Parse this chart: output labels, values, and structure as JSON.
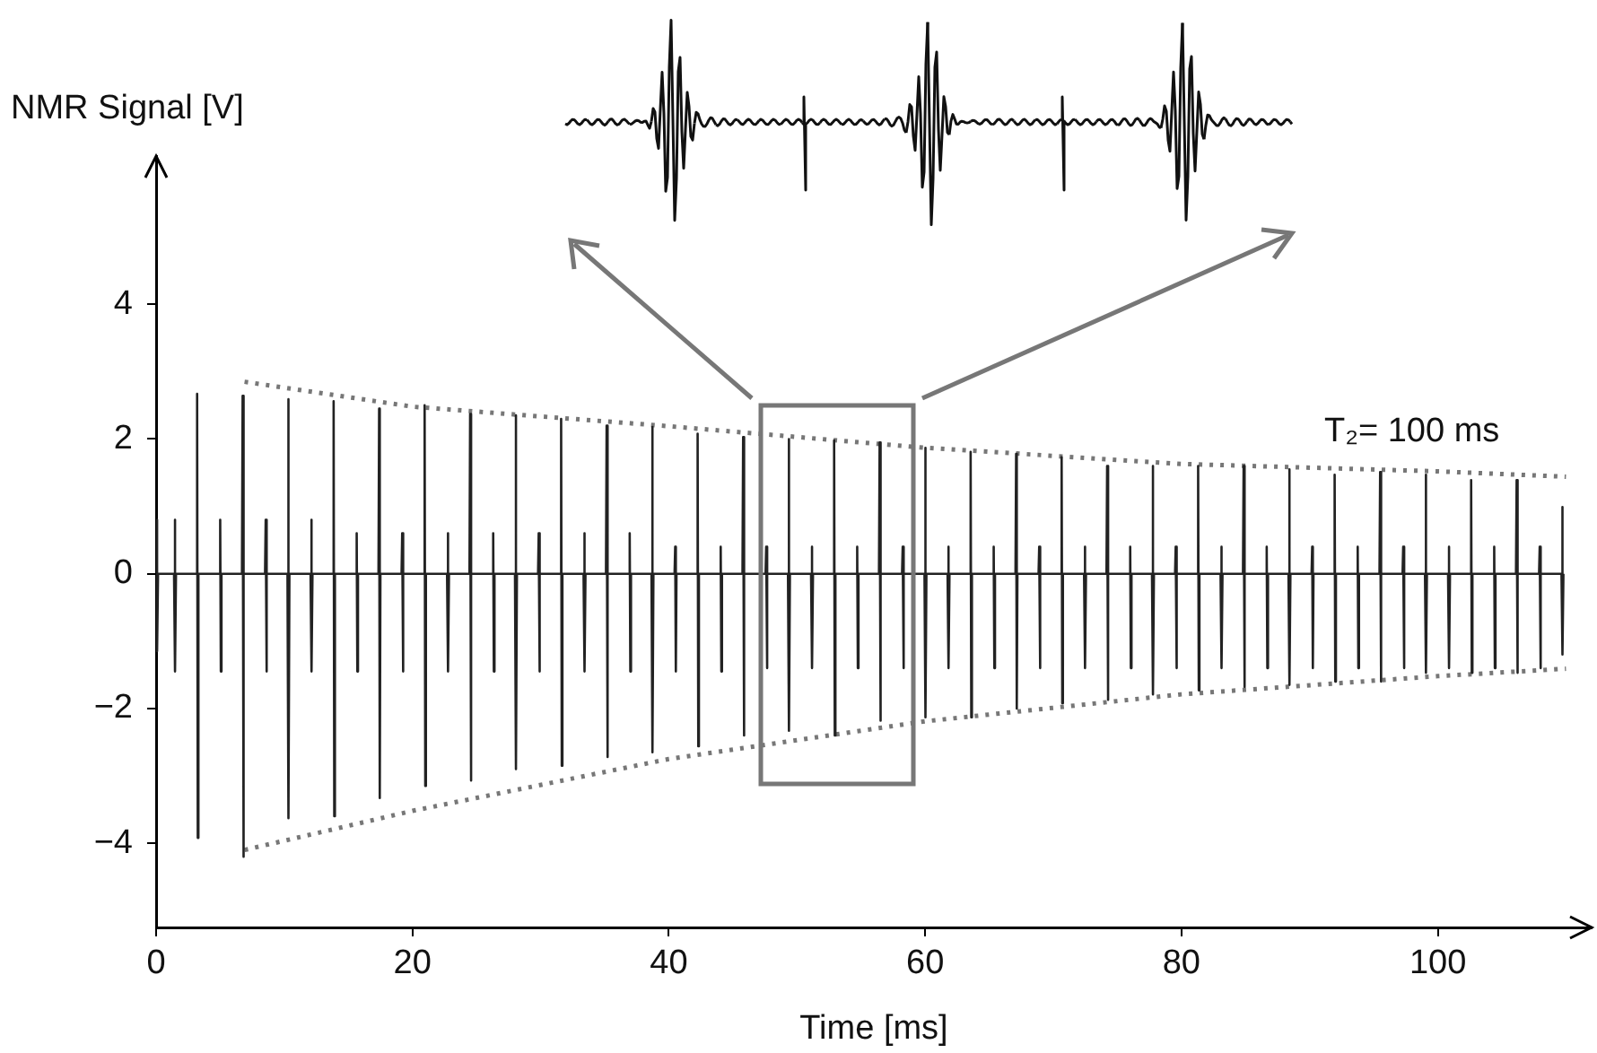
{
  "chart_data": {
    "type": "line",
    "xlabel": "Time [ms]",
    "ylabel": "NMR Signal [V]",
    "annotations": [
      "T₂= 100 ms"
    ],
    "xlim": [
      0,
      112
    ],
    "xticks": [
      0,
      20,
      40,
      60,
      80,
      100
    ],
    "ylim": [
      -5.25,
      6.2
    ],
    "yticks": [
      -4,
      -2,
      0,
      2,
      4
    ],
    "marker": "none",
    "series": [
      {
        "color": "#222222",
        "line_style": "solid",
        "x": [
          0,
          0.05,
          0.1,
          0.15,
          1.4,
          1.45,
          1.5,
          1.55,
          3.15,
          3.2,
          3.25,
          3.3,
          4.95,
          5.0,
          5.05,
          5.1,
          6.7,
          6.75,
          6.8,
          6.85,
          8.5,
          8.55,
          8.6,
          8.65,
          10.25,
          10.3,
          10.35,
          10.4,
          12.05,
          12.1,
          12.15,
          12.2,
          13.8,
          13.85,
          13.9,
          13.95,
          15.6,
          15.65,
          15.7,
          15.75,
          17.35,
          17.4,
          17.45,
          17.5,
          19.15,
          19.2,
          19.25,
          19.3,
          20.9,
          20.95,
          21.0,
          21.05,
          22.7,
          22.75,
          22.8,
          22.85,
          24.45,
          24.5,
          24.55,
          24.6,
          26.25,
          26.3,
          26.35,
          26.4,
          28.0,
          28.05,
          28.1,
          28.15,
          29.8,
          29.85,
          29.9,
          29.95,
          31.55,
          31.6,
          31.65,
          31.7,
          33.35,
          33.4,
          33.45,
          33.5,
          35.1,
          35.15,
          35.2,
          35.25,
          36.9,
          36.95,
          37.0,
          37.05,
          38.65,
          38.7,
          38.75,
          38.8,
          40.45,
          40.5,
          40.55,
          40.6,
          42.2,
          42.25,
          42.3,
          42.35,
          44.0,
          44.05,
          44.1,
          44.15,
          45.75,
          45.8,
          45.85,
          45.9,
          47.55,
          47.6,
          47.65,
          47.7,
          49.3,
          49.35,
          49.4,
          49.45,
          51.1,
          51.15,
          51.2,
          51.25,
          52.85,
          52.9,
          52.95,
          53.0,
          54.65,
          54.7,
          54.75,
          54.8,
          56.4,
          56.45,
          56.5,
          56.55,
          58.2,
          58.25,
          58.3,
          58.35,
          59.95,
          60.0,
          60.05,
          60.1,
          61.75,
          61.8,
          61.85,
          61.9,
          63.5,
          63.55,
          63.6,
          63.65,
          65.3,
          65.35,
          65.4,
          65.45,
          67.05,
          67.1,
          67.15,
          67.2,
          68.85,
          68.9,
          68.95,
          69.0,
          70.6,
          70.65,
          70.7,
          70.75,
          72.4,
          72.45,
          72.5,
          72.55,
          74.15,
          74.2,
          74.25,
          74.3,
          75.95,
          76.0,
          76.05,
          76.1,
          77.7,
          77.75,
          77.8,
          77.85,
          79.5,
          79.55,
          79.6,
          79.65,
          81.25,
          81.3,
          81.35,
          81.4,
          83.05,
          83.1,
          83.15,
          83.2,
          84.8,
          84.85,
          84.9,
          84.95,
          86.6,
          86.65,
          86.7,
          86.75,
          88.35,
          88.4,
          88.45,
          88.5,
          90.15,
          90.2,
          90.25,
          90.3,
          91.9,
          91.95,
          92.0,
          92.05,
          93.7,
          93.75,
          93.8,
          93.85,
          95.45,
          95.5,
          95.55,
          95.6,
          97.25,
          97.3,
          97.35,
          97.4,
          99.0,
          99.05,
          99.1,
          99.15,
          100.8,
          100.85,
          100.9,
          100.95,
          102.55,
          102.6,
          102.65,
          102.7,
          104.35,
          104.4,
          104.45,
          104.5,
          106.1,
          106.15,
          106.2,
          106.25,
          107.9,
          107.95,
          108.0,
          108.05,
          109.65,
          109.7,
          109.75,
          109.8
        ],
        "values": [
          0,
          0.8,
          -1.15,
          0,
          0,
          0.8,
          -1.45,
          0,
          0,
          2.67,
          -3.92,
          0,
          0,
          0.8,
          -1.45,
          0,
          0,
          2.64,
          -4.2,
          0,
          0,
          0.8,
          -1.45,
          0,
          0,
          2.59,
          -3.63,
          0,
          0,
          0.8,
          -1.45,
          0,
          0,
          2.56,
          -3.6,
          0,
          0,
          0.6,
          -1.45,
          0,
          0,
          2.45,
          -3.33,
          0,
          0,
          0.6,
          -1.45,
          0,
          0,
          2.5,
          -3.15,
          0,
          0,
          0.6,
          -1.45,
          0,
          0,
          2.37,
          -3.07,
          0,
          0,
          0.6,
          -1.45,
          0,
          0,
          2.35,
          -2.9,
          0,
          0,
          0.6,
          -1.45,
          0,
          0,
          2.3,
          -2.85,
          0,
          0,
          0.6,
          -1.45,
          0,
          0,
          2.2,
          -2.72,
          0,
          0,
          0.6,
          -1.45,
          0,
          0,
          2.18,
          -2.65,
          0,
          0,
          0.4,
          -1.45,
          0,
          0,
          2.08,
          -2.56,
          0,
          0,
          0.4,
          -1.45,
          0,
          0,
          2.03,
          -2.4,
          0,
          0,
          0.4,
          -1.4,
          0,
          0,
          2.0,
          -2.33,
          0,
          0,
          0.4,
          -1.4,
          0,
          0,
          1.98,
          -2.4,
          0,
          0,
          0.4,
          -1.4,
          0,
          0,
          1.95,
          -2.18,
          0,
          0,
          0.4,
          -1.4,
          0,
          0,
          1.87,
          -2.13,
          0,
          0,
          0.4,
          -1.4,
          0,
          0,
          1.81,
          -2.13,
          0,
          0,
          0.4,
          -1.4,
          0,
          0,
          1.78,
          -2.0,
          0,
          0,
          0.4,
          -1.4,
          0,
          0,
          1.73,
          -1.92,
          0,
          0,
          0.4,
          -1.4,
          0,
          0,
          1.6,
          -1.87,
          0,
          0,
          0.4,
          -1.4,
          0,
          0,
          1.6,
          -1.79,
          0,
          0,
          0.4,
          -1.4,
          0,
          0,
          1.6,
          -1.73,
          0,
          0,
          0.4,
          -1.4,
          0,
          0,
          1.6,
          -1.68,
          0,
          0,
          0.4,
          -1.4,
          0,
          0,
          1.55,
          -1.65,
          0,
          0,
          0.4,
          -1.4,
          0,
          0,
          1.47,
          -1.6,
          0,
          0,
          0.4,
          -1.4,
          0,
          0,
          1.51,
          -1.6,
          0,
          0,
          0.4,
          -1.4,
          0,
          0,
          1.47,
          -1.47,
          0,
          0,
          0.4,
          -1.4,
          0,
          0,
          1.39,
          -1.47,
          0,
          0,
          0.4,
          -1.4,
          0,
          0,
          1.39,
          -1.47,
          0,
          0,
          0.4,
          -1.4,
          0,
          0,
          0.99,
          -1.2,
          0
        ]
      },
      {
        "color": "#777777",
        "line_style": "dotted",
        "x": [
          6.9,
          20,
          40,
          60,
          80,
          100,
          110
        ],
        "values": [
          2.85,
          2.48,
          2.19,
          1.87,
          1.63,
          1.52,
          1.44
        ]
      },
      {
        "color": "#777777",
        "line_style": "dotted",
        "x": [
          6.9,
          20,
          40,
          60,
          80,
          100,
          110
        ],
        "values": [
          -4.1,
          -3.52,
          -2.75,
          -2.19,
          -1.79,
          -1.52,
          -1.41
        ]
      }
    ]
  }
}
